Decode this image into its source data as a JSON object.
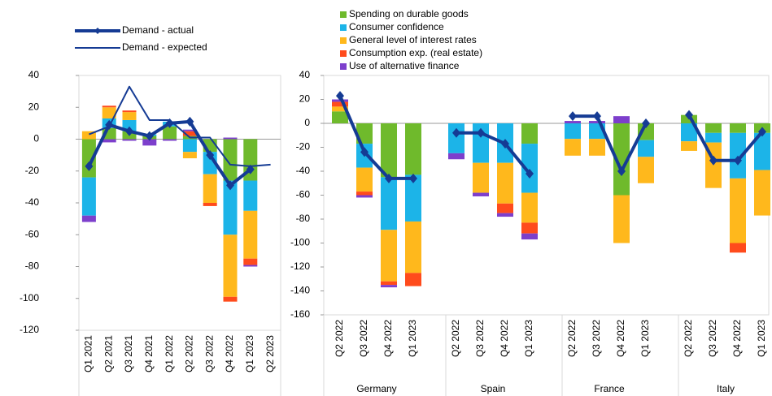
{
  "chart_data": [
    {
      "type": "bar",
      "categories": [
        "Q1 2021",
        "Q2 2021",
        "Q3 2021",
        "Q4 2021",
        "Q1 2022",
        "Q2 2022",
        "Q3 2022",
        "Q4 2022",
        "Q1 2023",
        "Q2 2023"
      ],
      "series": [
        {
          "mark": "bar",
          "color": "#6fba2c",
          "values": [
            -24,
            7,
            5,
            2,
            8,
            2,
            -8,
            -26,
            -26,
            null
          ]
        },
        {
          "mark": "bar",
          "color": "#1cb4e8",
          "values": [
            -24,
            6,
            7,
            1,
            3,
            -8,
            -14,
            -34,
            -19,
            null
          ]
        },
        {
          "mark": "bar",
          "color": "#ffb81c",
          "values": [
            5,
            7,
            5,
            0,
            0,
            -4,
            -18,
            -39,
            -30,
            null
          ]
        },
        {
          "mark": "bar",
          "color": "#ff4b1c",
          "values": [
            0,
            1,
            1,
            0,
            0,
            3,
            -2,
            -3,
            -4,
            null
          ]
        },
        {
          "mark": "bar",
          "color": "#7d3fcc",
          "values": [
            -4,
            -2,
            -1,
            -4,
            -1,
            1,
            0,
            1,
            -1,
            null
          ]
        },
        {
          "mark": "line",
          "name": "Demand - actual",
          "color": "#153b94",
          "width": 4,
          "markers": true,
          "values": [
            -17,
            9,
            5,
            2,
            10,
            11,
            -10,
            -29,
            -19,
            null
          ]
        },
        {
          "mark": "line",
          "name": "Demand - expected",
          "color": "#153b94",
          "width": 2,
          "markers": false,
          "values": [
            3,
            8,
            33,
            12,
            12,
            1,
            1,
            -16,
            -17,
            -16
          ]
        }
      ],
      "ylim": [
        -120,
        40
      ],
      "yticks": [
        -120,
        -100,
        -80,
        -60,
        -40,
        -20,
        0,
        20,
        40
      ]
    },
    {
      "type": "bar",
      "categories": [
        "Q2 2022",
        "Q3 2022",
        "Q4 2022",
        "Q1 2023",
        "Q2 2022",
        "Q3 2022",
        "Q4 2022",
        "Q1 2023",
        "Q2 2022",
        "Q3 2022",
        "Q4 2022",
        "Q1 2023",
        "Q2 2022",
        "Q3 2022",
        "Q4 2022",
        "Q1 2023"
      ],
      "groups": [
        "Germany",
        "Spain",
        "France",
        "Italy"
      ],
      "series": [
        {
          "mark": "bar",
          "name": "Spending on durable goods",
          "color": "#6fba2c",
          "values": [
            10,
            -17,
            -45,
            -43,
            0,
            0,
            0,
            -17,
            0,
            0,
            -60,
            -14,
            7,
            -8,
            -8,
            -8
          ]
        },
        {
          "mark": "bar",
          "name": "Consumer confidence",
          "color": "#1cb4e8",
          "values": [
            0,
            -20,
            -44,
            -39,
            -25,
            -33,
            -33,
            -41,
            -13,
            -13,
            0,
            -14,
            -15,
            -8,
            -38,
            -31
          ]
        },
        {
          "mark": "bar",
          "name": "General level of interest rates",
          "color": "#ffb81c",
          "values": [
            4,
            -20,
            -43,
            -43,
            0,
            -25,
            -34,
            -25,
            -14,
            -14,
            -40,
            -22,
            -8,
            -38,
            -54,
            -38
          ]
        },
        {
          "mark": "bar",
          "name": "Consumption exp. (real estate)",
          "color": "#ff4b1c",
          "values": [
            4,
            -3,
            -3,
            -11,
            0,
            0,
            -8,
            -9,
            0,
            0,
            0,
            0,
            0,
            0,
            -8,
            0
          ]
        },
        {
          "mark": "bar",
          "name": "Use of alternative finance",
          "color": "#7d3fcc",
          "values": [
            2,
            -2,
            -2,
            0,
            -5,
            -3,
            -3,
            -5,
            2,
            2,
            6,
            0,
            0,
            0,
            0,
            0
          ]
        },
        {
          "mark": "line",
          "color": "#153b94",
          "width": 4,
          "markers": true,
          "values": [
            23,
            -24,
            -46,
            -46,
            -8,
            -8,
            -17,
            -42,
            6,
            6,
            -40,
            0,
            7,
            -31,
            -31,
            -7
          ]
        }
      ],
      "ylim": [
        -160,
        40
      ],
      "yticks": [
        -160,
        -140,
        -120,
        -100,
        -80,
        -60,
        -40,
        -20,
        0,
        20,
        40
      ]
    }
  ]
}
